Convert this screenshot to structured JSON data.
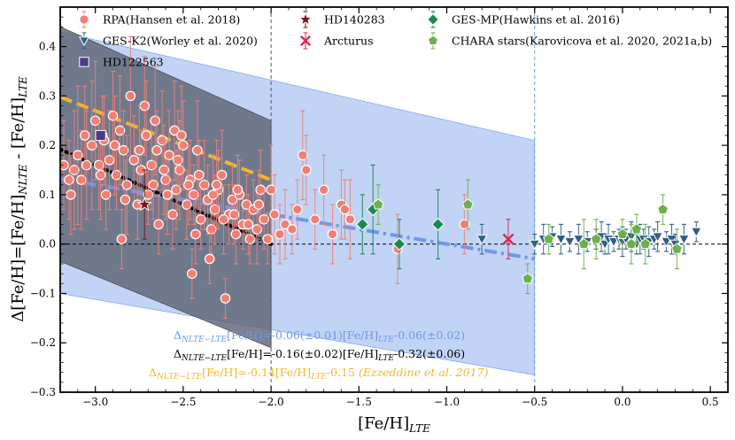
{
  "chart_data": {
    "type": "scatter",
    "xlabel": "[Fe/H]_LTE",
    "ylabel": "Δ[Fe/H]=[Fe/H]_NLTE - [Fe/H]_LTE",
    "xlim": [
      -3.2,
      0.6
    ],
    "ylim": [
      -0.3,
      0.48
    ],
    "xticks": [
      -3.0,
      -2.5,
      -2.0,
      -1.5,
      -1.0,
      -0.5,
      0.0,
      0.5
    ],
    "xtick_labels": [
      "−3.0",
      "−2.5",
      "−2.0",
      "−1.5",
      "−1.0",
      "−0.5",
      "0.0",
      "0.5"
    ],
    "yticks": [
      -0.3,
      -0.2,
      -0.1,
      0.0,
      0.1,
      0.2,
      0.3,
      0.4
    ],
    "ytick_labels": [
      "−0.3",
      "−0.2",
      "−0.1",
      "0.0",
      "0.1",
      "0.2",
      "0.3",
      "0.4"
    ],
    "vlines": [
      -2.0,
      -0.5
    ],
    "hline": 0.0,
    "colors": {
      "rpa": "#f07f74",
      "gesk2": "#2d5f84",
      "hd122563": "#4a3a8c",
      "hd140283": "#7a1520",
      "arcturus": "#d62a4a",
      "gesmp": "#178a52",
      "chara": "#6ab14a",
      "fit_this": "#6d97e8",
      "fit_black": "#000000",
      "fit_ezz": "#f0b82a",
      "band_blue": "#8eb1ee",
      "band_grey": "#5b6272"
    },
    "legend": {
      "rpa": "RPA(Hansen et al. 2018)",
      "gesk2": "GES-K2(Worley et al. 2020)",
      "hd122563": "HD122563",
      "hd140283": "HD140283",
      "arcturus": "Arcturus",
      "gesmp": "GES-MP(Hawkins et al. 2016)",
      "chara": "CHARA stars(Karovicova et al. 2020, 2021a,b)"
    },
    "fits": [
      {
        "name": "this-work",
        "prefix": "Δ",
        "sub": "NLTE−LTE",
        "text": "[Fe/H]=-0.06(±0.01)[Fe/H]",
        "sub2": "LTE",
        "text2": "-0.06(±0.02)",
        "xrange": [
          -3.2,
          -0.5
        ],
        "slope": -0.06,
        "intercept": -0.06
      },
      {
        "name": "black",
        "prefix": "Δ",
        "sub": "NLTE−LTE",
        "text": "[Fe/H]=-0.16(±0.02)[Fe/H]",
        "sub2": "LTE",
        "text2": "-0.32(±0.06)",
        "xrange": [
          -3.2,
          -2.0
        ],
        "slope": -0.16,
        "intercept": -0.32
      },
      {
        "name": "ezzeddine",
        "prefix": "Δ",
        "sub": "NLTE−LTE",
        "text": "[Fe/H]=-0.14[Fe/H]",
        "sub2": "LTE",
        "text2": "-0.15 ",
        "cite": "(Ezzeddine et al. 2017)",
        "xrange": [
          -3.2,
          -2.0
        ],
        "slope": -0.14,
        "intercept": -0.15
      }
    ],
    "bands": [
      {
        "name": "blue",
        "x": [
          -3.2,
          -0.5
        ],
        "upper": [
          0.43,
          0.21
        ],
        "lower": [
          -0.1,
          -0.265
        ]
      },
      {
        "name": "grey",
        "x": [
          -3.2,
          -2.0
        ],
        "upper": [
          0.44,
          0.25
        ],
        "lower": [
          -0.035,
          -0.21
        ]
      }
    ],
    "series": [
      {
        "name": "rpa",
        "marker": "circle",
        "points": [
          [
            -3.18,
            0.16,
            0.09
          ],
          [
            -3.15,
            0.13,
            0.08
          ],
          [
            -3.12,
            0.15,
            0.12
          ],
          [
            -3.1,
            0.18,
            0.14
          ],
          [
            -3.08,
            0.13,
            0.1
          ],
          [
            -3.05,
            0.16,
            0.11
          ],
          [
            -3.02,
            0.2,
            0.13
          ],
          [
            -3.0,
            0.25,
            0.12
          ],
          [
            -2.98,
            0.16,
            0.09
          ],
          [
            -2.96,
            0.22,
            0.08
          ],
          [
            -2.94,
            0.1,
            0.07
          ],
          [
            -2.92,
            0.17,
            0.1
          ],
          [
            -2.9,
            0.26,
            0.09
          ],
          [
            -2.88,
            0.14,
            0.07
          ],
          [
            -2.86,
            0.23,
            0.11
          ],
          [
            -2.84,
            0.19,
            0.08
          ],
          [
            -2.82,
            0.12,
            0.1
          ],
          [
            -2.8,
            0.3,
            0.12
          ],
          [
            -2.78,
            0.17,
            0.09
          ],
          [
            -2.76,
            0.08,
            0.07
          ],
          [
            -2.74,
            0.15,
            0.08
          ],
          [
            -2.72,
            0.28,
            0.1
          ],
          [
            -2.7,
            0.1,
            0.06
          ],
          [
            -2.68,
            0.16,
            0.09
          ],
          [
            -2.66,
            0.25,
            0.11
          ],
          [
            -2.64,
            0.04,
            0.06
          ],
          [
            -2.62,
            0.21,
            0.1
          ],
          [
            -2.6,
            0.13,
            0.08
          ],
          [
            -2.58,
            0.18,
            0.09
          ],
          [
            -2.56,
            0.06,
            0.07
          ],
          [
            -2.54,
            0.11,
            0.08
          ],
          [
            -2.52,
            0.15,
            0.1
          ],
          [
            -2.5,
            0.2,
            0.09
          ],
          [
            -2.48,
            0.08,
            0.07
          ],
          [
            -2.46,
            0.13,
            0.08
          ],
          [
            -2.44,
            0.1,
            0.06
          ],
          [
            -2.42,
            0.19,
            0.1
          ],
          [
            -2.4,
            0.05,
            0.06
          ],
          [
            -2.38,
            0.12,
            0.09
          ],
          [
            -2.36,
            0.09,
            0.07
          ],
          [
            -2.34,
            0.03,
            0.05
          ],
          [
            -2.32,
            0.07,
            0.07
          ],
          [
            -2.3,
            0.11,
            0.08
          ],
          [
            -2.28,
            0.14,
            0.09
          ],
          [
            -2.26,
            -0.11,
            0.04
          ],
          [
            -2.24,
            0.06,
            0.06
          ],
          [
            -2.22,
            0.09,
            0.07
          ],
          [
            -2.2,
            0.02,
            0.06
          ],
          [
            -2.18,
            0.1,
            0.07
          ],
          [
            -2.16,
            0.04,
            0.05
          ],
          [
            -2.14,
            0.08,
            0.06
          ],
          [
            -2.12,
            0.01,
            0.05
          ],
          [
            -2.1,
            0.07,
            0.06
          ],
          [
            -2.08,
            0.03,
            0.07
          ],
          [
            -2.06,
            0.11,
            0.08
          ],
          [
            -2.04,
            0.05,
            0.06
          ],
          [
            -2.02,
            0.01,
            0.05
          ],
          [
            -2.0,
            0.11,
            0.09
          ],
          [
            -1.98,
            0.06,
            0.08
          ],
          [
            -1.95,
            0.02,
            0.06
          ],
          [
            -1.92,
            0.04,
            0.07
          ],
          [
            -1.88,
            0.03,
            0.05
          ],
          [
            -1.85,
            0.07,
            0.06
          ],
          [
            -1.82,
            0.18,
            0.09
          ],
          [
            -1.8,
            0.15,
            0.07
          ],
          [
            -1.75,
            0.05,
            0.06
          ],
          [
            -1.7,
            0.11,
            0.07
          ],
          [
            -1.65,
            0.02,
            0.06
          ],
          [
            -1.6,
            0.08,
            0.07
          ],
          [
            -1.58,
            0.07,
            0.06
          ],
          [
            -1.55,
            0.05,
            0.08
          ],
          [
            -3.14,
            0.1,
            0.08
          ],
          [
            -3.06,
            0.22,
            0.1
          ],
          [
            -2.97,
            0.14,
            0.09
          ],
          [
            -2.89,
            0.2,
            0.1
          ],
          [
            -2.83,
            0.09,
            0.08
          ],
          [
            -2.75,
            0.19,
            0.09
          ],
          [
            -2.67,
            0.12,
            0.07
          ],
          [
            -2.61,
            0.15,
            0.09
          ],
          [
            -2.53,
            0.17,
            0.1
          ],
          [
            -2.47,
            0.12,
            0.08
          ],
          [
            -2.41,
            0.14,
            0.07
          ],
          [
            -2.33,
            0.1,
            0.08
          ],
          [
            -2.27,
            0.05,
            0.07
          ],
          [
            -2.21,
            0.06,
            0.06
          ],
          [
            -2.13,
            0.04,
            0.06
          ],
          [
            -2.07,
            0.08,
            0.07
          ],
          [
            -2.55,
            0.23,
            0.1
          ],
          [
            -2.65,
            0.19,
            0.08
          ],
          [
            -2.45,
            -0.06,
            0.05
          ],
          [
            -2.35,
            -0.03,
            0.05
          ],
          [
            -2.85,
            0.01,
            0.06
          ],
          [
            -2.95,
            0.21,
            0.09
          ],
          [
            -2.71,
            0.22,
            0.11
          ],
          [
            -2.51,
            0.22,
            0.1
          ],
          [
            -2.59,
            0.1,
            0.08
          ],
          [
            -2.43,
            0.02,
            0.06
          ],
          [
            -2.31,
            0.12,
            0.09
          ],
          [
            -2.19,
            0.11,
            0.07
          ],
          [
            -0.9,
            0.04,
            0.06
          ],
          [
            -1.28,
            -0.01,
            0.07
          ]
        ]
      },
      {
        "name": "gesk2",
        "marker": "triangle-down",
        "points": [
          [
            -0.8,
            0.01,
            0.03
          ],
          [
            -0.5,
            0.0,
            0.02
          ],
          [
            -0.45,
            0.01,
            0.03
          ],
          [
            -0.4,
            0.015,
            0.02
          ],
          [
            -0.35,
            0.01,
            0.03
          ],
          [
            -0.3,
            0.005,
            0.02
          ],
          [
            -0.25,
            0.01,
            0.03
          ],
          [
            -0.2,
            0.005,
            0.02
          ],
          [
            -0.15,
            0.01,
            0.02
          ],
          [
            -0.12,
            0.015,
            0.03
          ],
          [
            -0.1,
            0.0,
            0.02
          ],
          [
            -0.08,
            0.01,
            0.03
          ],
          [
            -0.05,
            0.005,
            0.02
          ],
          [
            -0.02,
            0.01,
            0.02
          ],
          [
            0.0,
            0.005,
            0.03
          ],
          [
            0.02,
            0.01,
            0.02
          ],
          [
            0.05,
            0.015,
            0.03
          ],
          [
            0.08,
            0.0,
            0.02
          ],
          [
            0.1,
            0.01,
            0.03
          ],
          [
            0.12,
            0.01,
            0.02
          ],
          [
            0.15,
            0.005,
            0.03
          ],
          [
            0.18,
            0.01,
            0.02
          ],
          [
            0.2,
            0.015,
            0.03
          ],
          [
            0.25,
            0.005,
            0.02
          ],
          [
            0.28,
            0.01,
            0.03
          ],
          [
            0.3,
            0.0,
            0.02
          ],
          [
            0.35,
            0.01,
            0.03
          ],
          [
            0.42,
            0.025,
            0.02
          ]
        ]
      },
      {
        "name": "hd122563",
        "marker": "square",
        "points": [
          [
            -2.97,
            0.22,
            0.0
          ]
        ]
      },
      {
        "name": "hd140283",
        "marker": "star",
        "points": [
          [
            -2.72,
            0.08,
            0.07
          ]
        ]
      },
      {
        "name": "arcturus",
        "marker": "x",
        "points": [
          [
            -0.65,
            0.01,
            0.04
          ]
        ]
      },
      {
        "name": "gesmp",
        "marker": "diamond",
        "points": [
          [
            -1.48,
            0.04,
            0.06
          ],
          [
            -1.42,
            0.07,
            0.09
          ],
          [
            -1.27,
            0.0,
            0.05
          ],
          [
            -1.05,
            0.04,
            0.07
          ]
        ]
      },
      {
        "name": "chara",
        "marker": "pentagon",
        "points": [
          [
            -1.39,
            0.08,
            0.04
          ],
          [
            -0.88,
            0.08,
            0.05
          ],
          [
            -0.54,
            -0.07,
            0.03
          ],
          [
            -0.22,
            0.0,
            0.05
          ],
          [
            0.05,
            0.0,
            0.04
          ],
          [
            0.08,
            0.03,
            0.03
          ],
          [
            0.13,
            0.0,
            0.04
          ],
          [
            0.23,
            0.07,
            0.03
          ],
          [
            0.31,
            -0.01,
            0.04
          ],
          [
            -0.42,
            0.01,
            0.03
          ],
          [
            -0.15,
            0.01,
            0.04
          ],
          [
            0.0,
            0.02,
            0.03
          ]
        ]
      }
    ]
  }
}
